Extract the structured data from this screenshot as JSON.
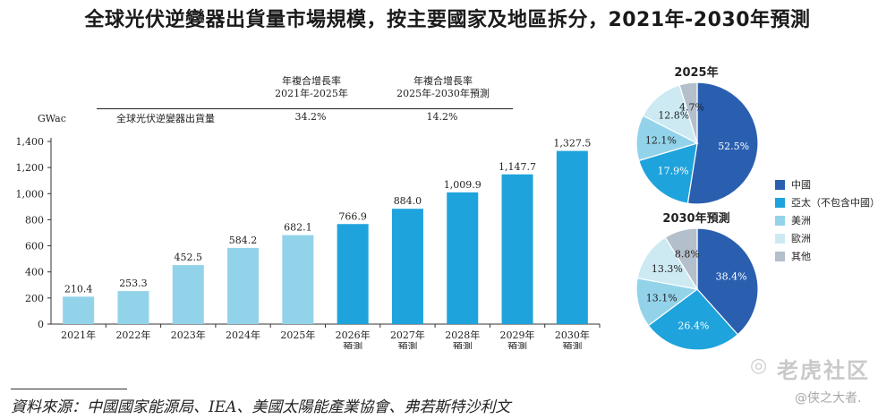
{
  "title": "全球光伏逆變器出貨量市場規模，按主要國家及地區拆分，2021年-2030年預測",
  "cagr": {
    "head1": "年複合增長率",
    "period1": "2021年-2025年",
    "head2": "年複合增長率",
    "period2": "2025年-2030年預測",
    "row_label": "全球光伏逆變器出貨量",
    "value1": "34.2%",
    "value2": "14.2%"
  },
  "chart_data": [
    {
      "type": "bar",
      "ylabel": "GWac",
      "ylim": [
        0,
        1400
      ],
      "yticks": [
        "0",
        "200",
        "400",
        "600",
        "800",
        "1,000",
        "1,200",
        "1,400"
      ],
      "ytick_values": [
        0,
        200,
        400,
        600,
        800,
        1000,
        1200,
        1400
      ],
      "categories": [
        [
          "2021年"
        ],
        [
          "2022年"
        ],
        [
          "2023年"
        ],
        [
          "2024年"
        ],
        [
          "2025年"
        ],
        [
          "2026年",
          "預測"
        ],
        [
          "2027年",
          "預測"
        ],
        [
          "2028年",
          "預測"
        ],
        [
          "2029年",
          "預測"
        ],
        [
          "2030年",
          "預測"
        ]
      ],
      "values": [
        210.4,
        253.3,
        452.5,
        584.2,
        682.1,
        766.9,
        884.0,
        1009.9,
        1147.7,
        1327.5
      ],
      "labels": [
        "210.4",
        "253.3",
        "452.5",
        "584.2",
        "682.1",
        "766.9",
        "884.0",
        "1,009.9",
        "1,147.7",
        "1,327.5"
      ],
      "colors": {
        "historical": "#93d3ea",
        "forecast": "#1fa3dc"
      },
      "forecast_start_index": 5
    },
    {
      "type": "pie",
      "title": "2025年",
      "slices": [
        {
          "name": "中國",
          "value": 52.5,
          "label": "52.5%"
        },
        {
          "name": "亞太（不包含中國）",
          "value": 17.9,
          "label": "17.9%"
        },
        {
          "name": "美洲",
          "value": 12.1,
          "label": "12.1%"
        },
        {
          "name": "歐洲",
          "value": 12.8,
          "label": "12.8%"
        },
        {
          "name": "其他",
          "value": 4.7,
          "label": "4.7%"
        }
      ]
    },
    {
      "type": "pie",
      "title": "2030年預測",
      "slices": [
        {
          "name": "中國",
          "value": 38.4,
          "label": "38.4%"
        },
        {
          "name": "亞太（不包含中國）",
          "value": 26.4,
          "label": "26.4%"
        },
        {
          "name": "美洲",
          "value": 13.1,
          "label": "13.1%"
        },
        {
          "name": "歐洲",
          "value": 13.3,
          "label": "13.3%"
        },
        {
          "name": "其他",
          "value": 8.8,
          "label": "8.8%"
        }
      ]
    }
  ],
  "legend": [
    {
      "name": "中國",
      "color": "#2a5fb0"
    },
    {
      "name": "亞太（不包含中國）",
      "color": "#1fa3dc"
    },
    {
      "name": "美洲",
      "color": "#93d3ea"
    },
    {
      "name": "歐洲",
      "color": "#cdeaf3"
    },
    {
      "name": "其他",
      "color": "#b4bfcc"
    }
  ],
  "source": "資料來源：中國國家能源局、IEA、美國太陽能產業協會、弗若斯特沙利文",
  "watermark": {
    "brand": "老虎社区",
    "user": "@侠之大者.",
    "icon": "tiger-icon"
  }
}
